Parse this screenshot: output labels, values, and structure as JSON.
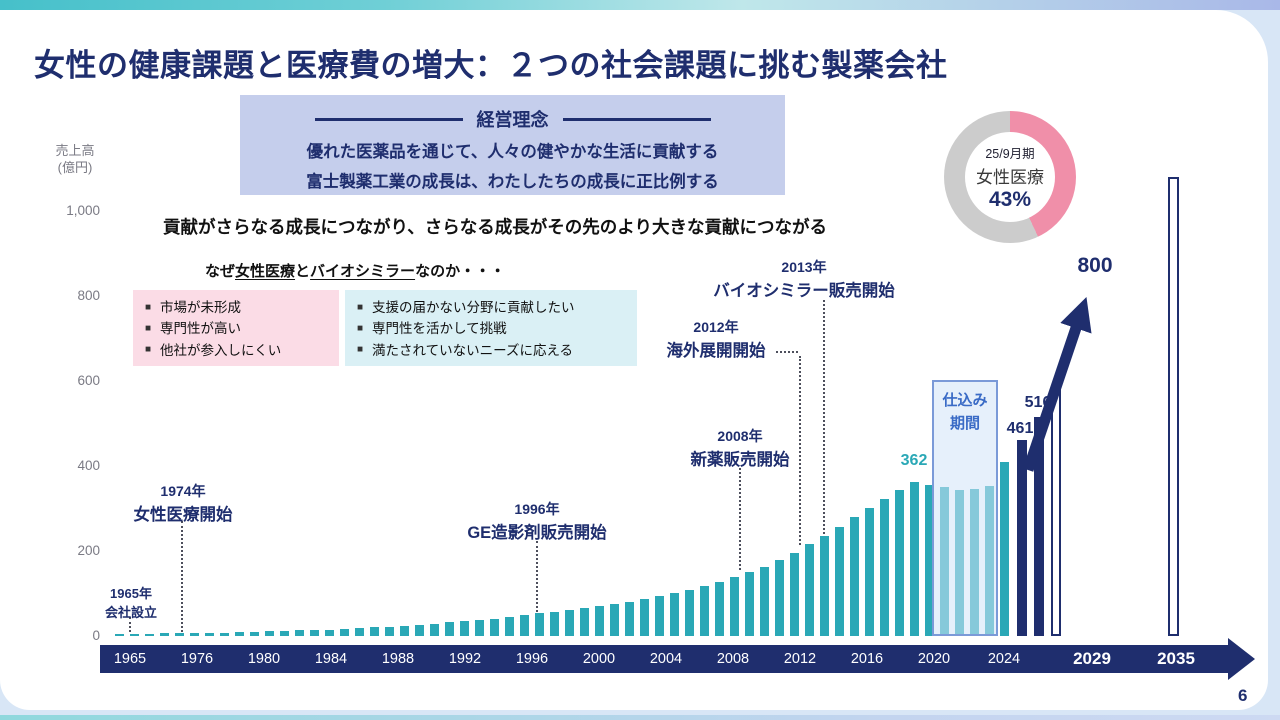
{
  "slide": {
    "title": "女性の健康課題と医療費の増大：２つの社会課題に挑む製薬会社",
    "page_number": "6"
  },
  "philosophy": {
    "heading": "経営理念",
    "lines": [
      "優れた医薬品を通じて、人々の健やかな生活に貢献する",
      "富士製薬工業の成長は、わたしたちの成長に正比例する"
    ]
  },
  "growth_statement": "貢献がさらなる成長につながり、さらなる成長がその先のより大きな貢献につながる",
  "why_section": {
    "bullet": "■",
    "heading_parts": [
      "なぜ",
      "女性医療",
      "と",
      "バイオシミラー",
      "なのか・・・"
    ],
    "market_box": [
      "市場が未形成",
      "専門性が高い",
      "他社が参入しにくい"
    ],
    "mission_box": [
      "支援の届かない分野に貢献したい",
      "専門性を活かして挑戦",
      "満たされていないニーズに応える"
    ]
  },
  "donut": {
    "period": "25/9月期",
    "label": "女性医療",
    "value": "43%",
    "percent": 43,
    "colors": {
      "segment": "#f08fa9",
      "rest": "#cccccc"
    }
  },
  "milestones": [
    {
      "year": "1965年",
      "label": "会社設立"
    },
    {
      "year": "1974年",
      "label": "女性医療開始"
    },
    {
      "year": "1996年",
      "label": "GE造影剤販売開始"
    },
    {
      "year": "2008年",
      "label": "新薬販売開始"
    },
    {
      "year": "2012年",
      "label": "海外展開開始"
    },
    {
      "year": "2013年",
      "label": "バイオシミラー販売開始"
    }
  ],
  "chart_data": {
    "type": "bar",
    "y_axis_title": [
      "売上高",
      "(億円)"
    ],
    "y_ticks": [
      "1,000",
      "800",
      "600",
      "400",
      "200",
      "0"
    ],
    "ylim": [
      0,
      1000
    ],
    "x_axis_labels": [
      "1965",
      "1976",
      "1980",
      "1984",
      "1988",
      "1992",
      "1996",
      "2000",
      "2004",
      "2008",
      "2012",
      "2016",
      "2020",
      "2024",
      "2029",
      "2035"
    ],
    "bars": {
      "actual_start_year": 1965,
      "actual_values": [
        4,
        5,
        5,
        6,
        6,
        7,
        8,
        8,
        9,
        10,
        11,
        12,
        13,
        14,
        15,
        16,
        18,
        20,
        22,
        24,
        26,
        29,
        32,
        35,
        38,
        41,
        45,
        49,
        53,
        57,
        61,
        65,
        70,
        75,
        80,
        86,
        93,
        100,
        108,
        117,
        127,
        138,
        150,
        163,
        178,
        196,
        216,
        236,
        257,
        280,
        300,
        322,
        344,
        362,
        355,
        350,
        344,
        347,
        352,
        410
      ],
      "plan_values": [
        461,
        516
      ],
      "outline_value": 590,
      "vision_value": 1080
    },
    "value_labels": {
      "recent_peak": "362",
      "plan_1": "461",
      "plan_2": "516",
      "target": "800"
    },
    "incubation_label": [
      "仕込み",
      "期間"
    ],
    "colors": {
      "actual": "#2aa8b6",
      "plan": "#1f2e6e",
      "outline_border": "#1f2e6e"
    }
  }
}
